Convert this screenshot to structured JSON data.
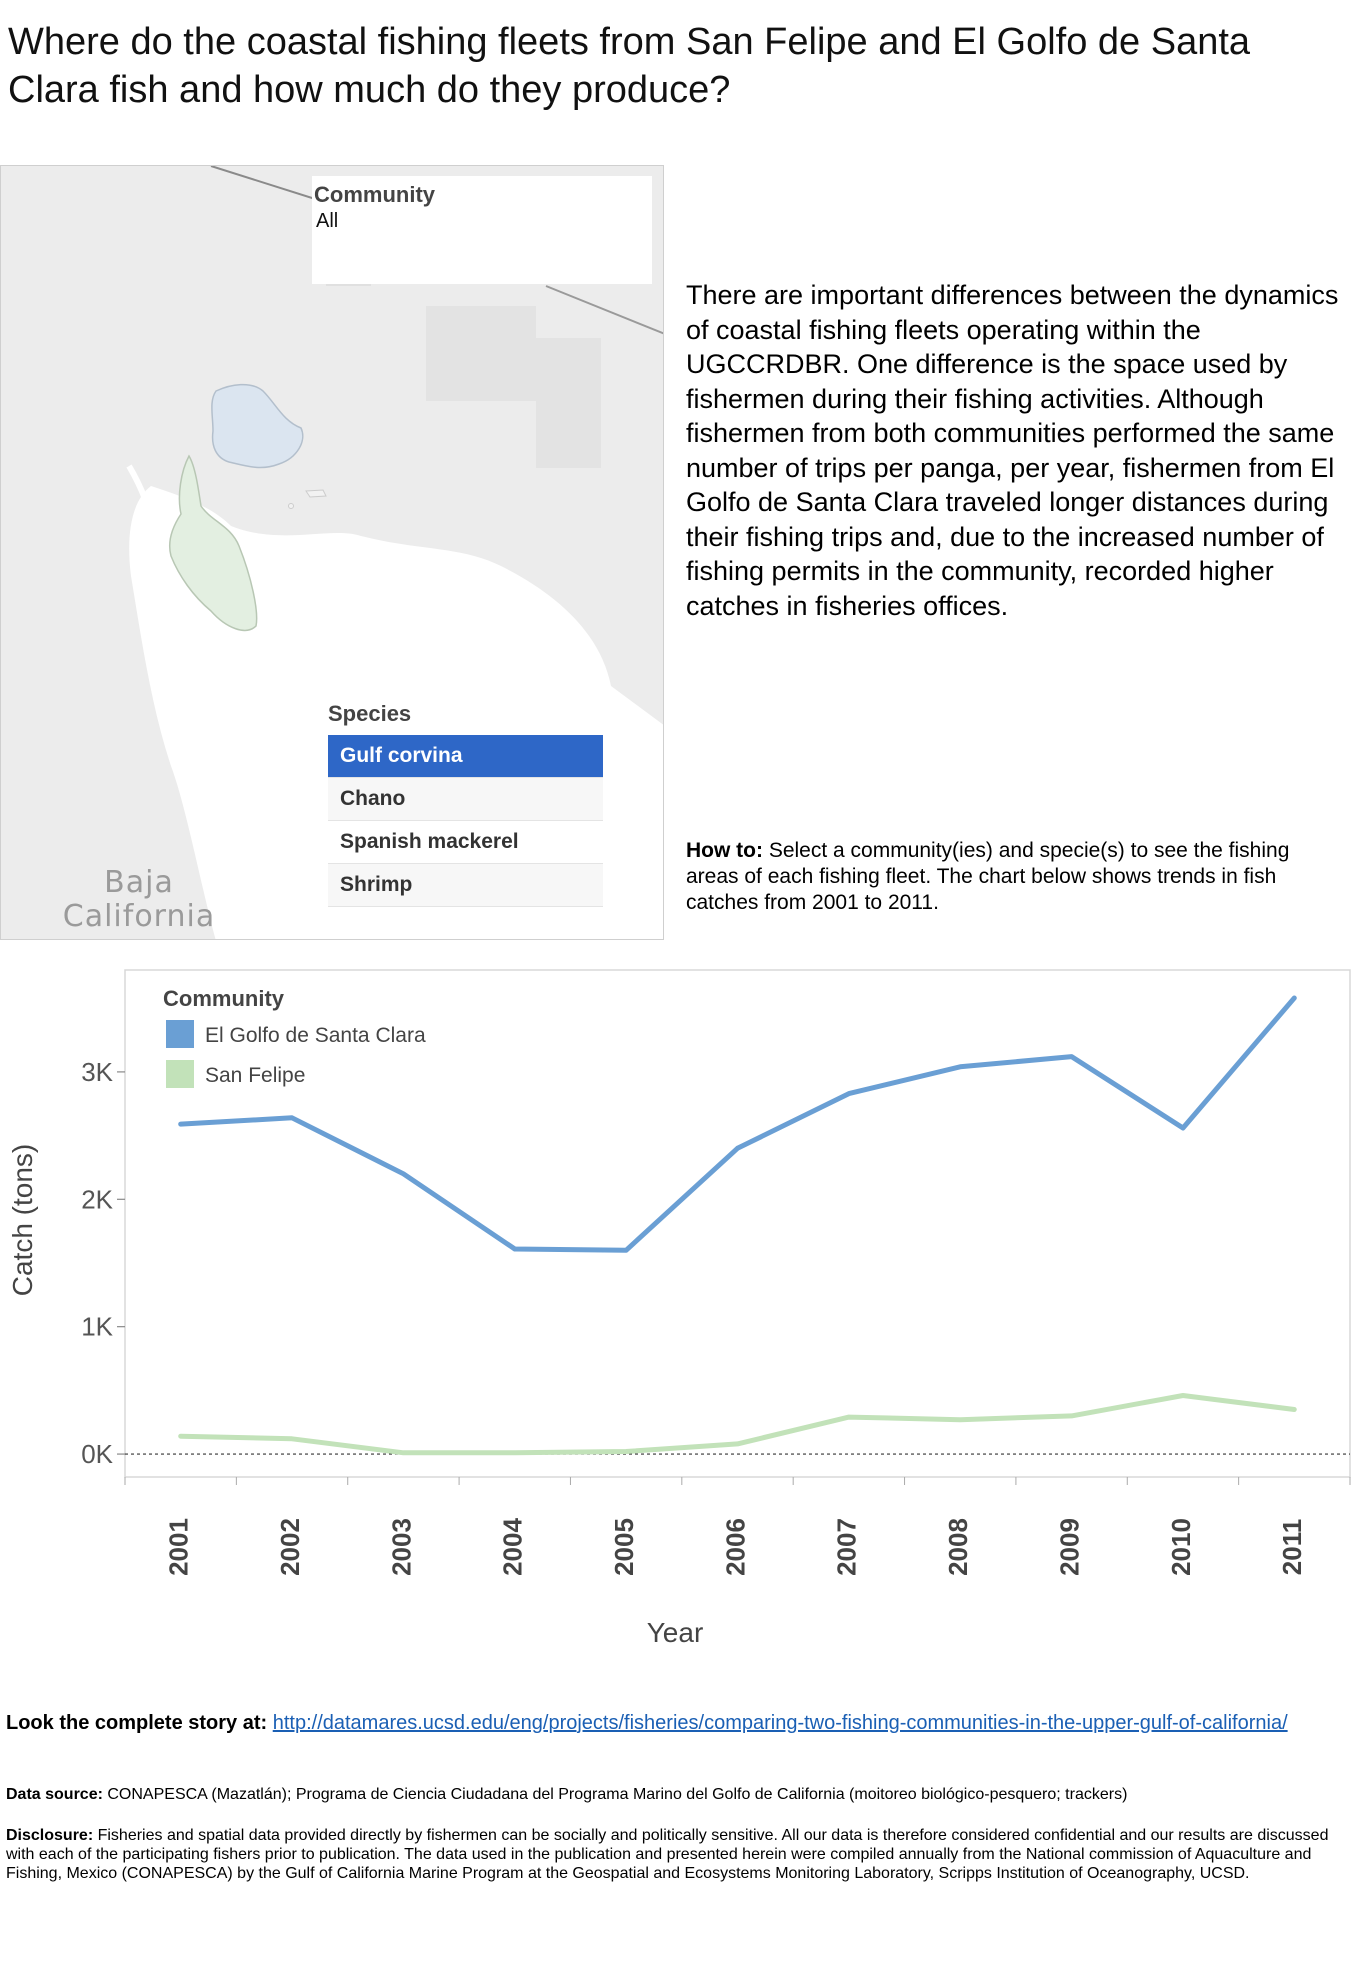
{
  "title": "Where do the coastal fishing fleets from San Felipe and El Golfo de Santa Clara fish and how much do they produce?",
  "map": {
    "community_filter": {
      "label": "Community",
      "value": "All"
    },
    "species_filter": {
      "label": "Species",
      "items": [
        "Gulf corvina",
        "Chano",
        "Spanish mackerel",
        "Shrimp"
      ],
      "selected": "Gulf corvina"
    },
    "place_label_line1": "Baja",
    "place_label_line2": "California",
    "colors": {
      "land": "#ececec",
      "water": "#ffffff",
      "area_golfo": "#dbe5f0",
      "area_sanfelipe": "#e3efe1"
    }
  },
  "description": "There are important differences between the dynamics of coastal fishing fleets operating within the UGCCRDBR. One difference is the space used by fishermen during their fishing activities. Although fishermen from both communities performed the same number of trips per panga, per year, fishermen from El Golfo de Santa Clara traveled longer distances during their fishing trips and, due to the increased number of fishing permits in the community, recorded higher catches in fisheries offices.",
  "howto": {
    "label": "How to:",
    "text": " Select a community(ies) and specie(s) to see the fishing areas of each fishing fleet. The chart below shows trends in fish catches from 2001 to 2011."
  },
  "chart_data": {
    "type": "line",
    "x": [
      "2001",
      "2002",
      "2003",
      "2004",
      "2005",
      "2006",
      "2007",
      "2008",
      "2009",
      "2010",
      "2011"
    ],
    "series": [
      {
        "name": "El Golfo de Santa Clara",
        "color": "#6a9fd4",
        "values": [
          2590,
          2640,
          2200,
          1610,
          1600,
          2400,
          2830,
          3040,
          3120,
          2560,
          3580
        ]
      },
      {
        "name": "San Felipe",
        "color": "#c2e2b9",
        "values": [
          140,
          120,
          10,
          10,
          20,
          80,
          290,
          270,
          300,
          460,
          350
        ]
      }
    ],
    "xlabel": "Year",
    "ylabel": "Catch (tons)",
    "legend_title": "Community",
    "legend_position": "top-left",
    "ylim": [
      -180,
      3800
    ],
    "yticks": [
      0,
      1000,
      2000,
      3000
    ],
    "ytick_labels": [
      "0K",
      "1K",
      "2K",
      "3K"
    ],
    "zero_line": "dashed"
  },
  "footer": {
    "link_label": "Look the complete story at:",
    "link_text": "http://datamares.ucsd.edu/eng/projects/fisheries/comparing-two-fishing-communities-in-the-upper-gulf-of-california/",
    "source_label": "Data source:",
    "source_text": " CONAPESCA (Mazatlán); Programa de Ciencia Ciudadana del Programa Marino del Golfo de California (moitoreo biológico-pesquero; trackers)",
    "disclosure_label": "Disclosure:",
    "disclosure_text": " Fisheries and spatial data provided directly by fishermen can be socially and politically sensitive. All our data is therefore considered confidential and our results are discussed with each of the participating fishers prior to publication. The data used in the publication and presented herein were compiled annually from the National commission of Aquaculture and Fishing, Mexico (CONAPESCA) by the Gulf of California Marine Program at the Geospatial and Ecosystems Monitoring Laboratory, Scripps Institution of Oceanography, UCSD."
  }
}
